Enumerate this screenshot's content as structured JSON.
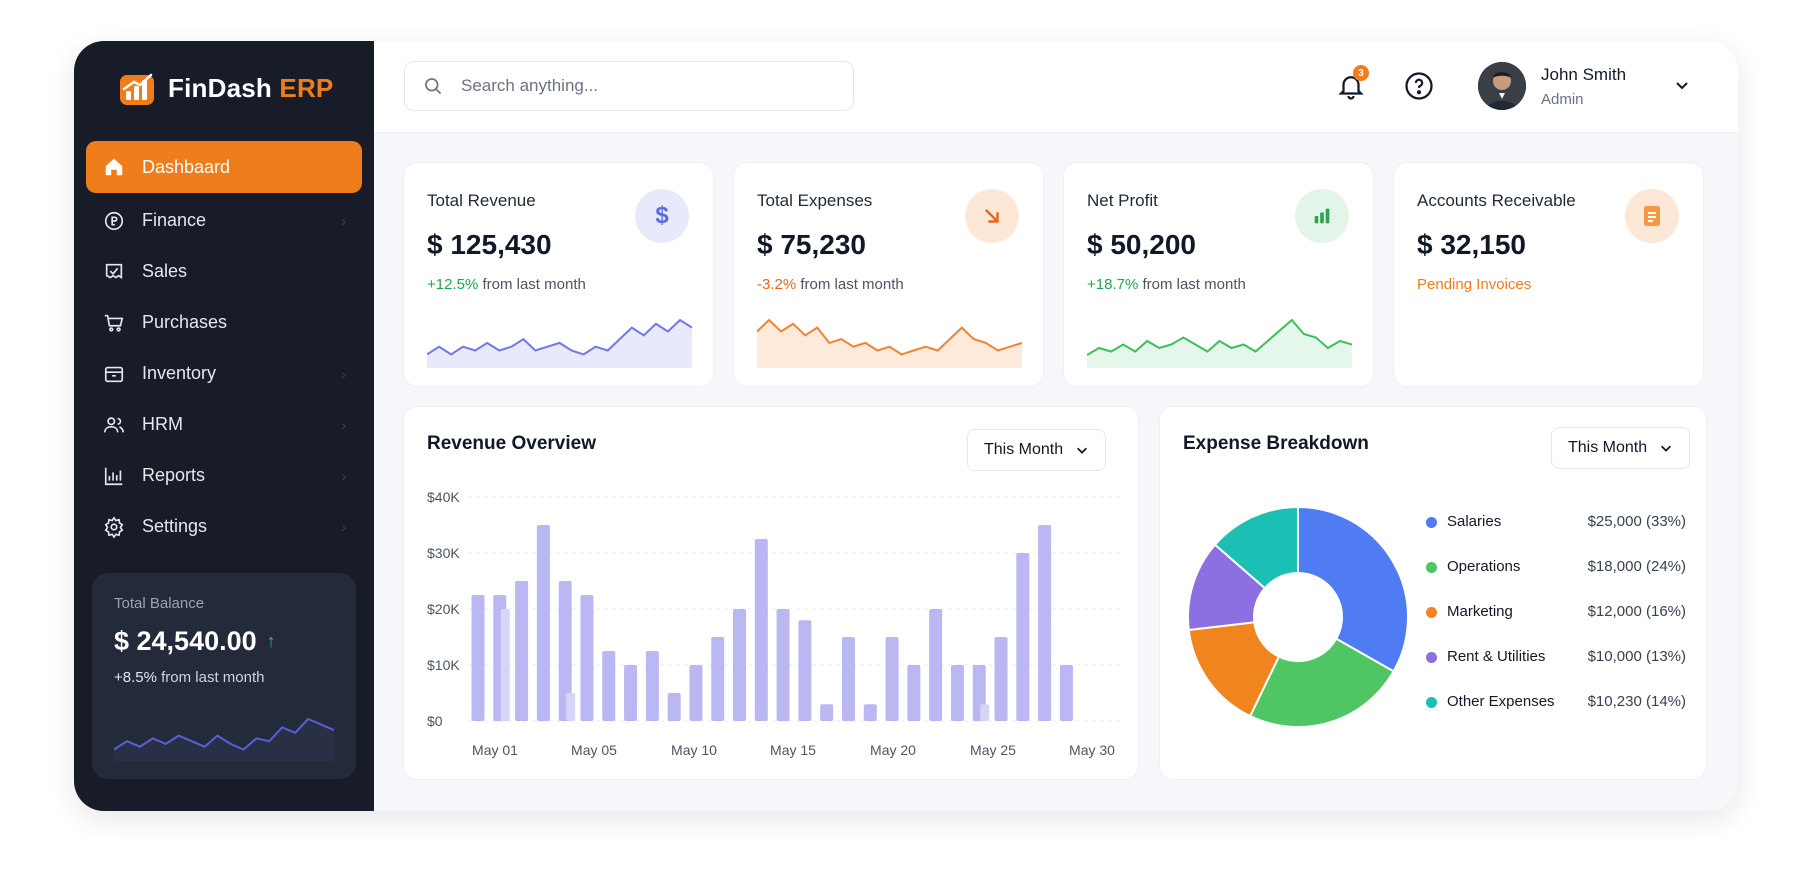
{
  "brand": {
    "name": "FinDash",
    "suffix": "ERP",
    "accent_color": "#f07d1c"
  },
  "sidebar": {
    "items": [
      {
        "label": "Dashbaard",
        "icon": "home-icon",
        "active": true,
        "has_chevron": false
      },
      {
        "label": "Finance",
        "icon": "finance-icon",
        "active": false,
        "has_chevron": true
      },
      {
        "label": "Sales",
        "icon": "sales-icon",
        "active": false,
        "has_chevron": false
      },
      {
        "label": "Purchases",
        "icon": "cart-icon",
        "active": false,
        "has_chevron": false
      },
      {
        "label": "Inventory",
        "icon": "box-icon",
        "active": false,
        "has_chevron": true
      },
      {
        "label": "HRM",
        "icon": "users-icon",
        "active": false,
        "has_chevron": true
      },
      {
        "label": "Reports",
        "icon": "reports-icon",
        "active": false,
        "has_chevron": true
      },
      {
        "label": "Settings",
        "icon": "gear-icon",
        "active": false,
        "has_chevron": true
      }
    ],
    "balance": {
      "label": "Total Balance",
      "value": "$ 24,540.00",
      "change_pct": "+8.5%",
      "change_text": "from last month",
      "spark": [
        4,
        7,
        5,
        8,
        6,
        9,
        7,
        5,
        9,
        6,
        4,
        8,
        7,
        12,
        10,
        15,
        13,
        11
      ]
    }
  },
  "header": {
    "search_placeholder": "Search anything...",
    "notifications_count": "3",
    "user": {
      "name": "John Smith",
      "role": "Admin"
    }
  },
  "stats": [
    {
      "title": "Total Revenue",
      "value": "$ 125,430",
      "change_pct": "+12.5%",
      "change_text": "from last month",
      "change_color": "#22a652",
      "icon": "dollar-icon",
      "icon_bg": "#e8e9fb",
      "icon_color": "#5c6ae6",
      "line_color": "#7477e3",
      "fill_color": "#e2e3fa",
      "spark": [
        8,
        10,
        8,
        10,
        9,
        11,
        9,
        10,
        12,
        9,
        10,
        11,
        9,
        8,
        10,
        9,
        12,
        15,
        13,
        16,
        14,
        17,
        15
      ]
    },
    {
      "title": "Total Expenses",
      "value": "$ 75,230",
      "change_pct": "-3.2%",
      "change_text": "from last month",
      "change_color": "#e8661a",
      "icon": "arrow-down-right-icon",
      "icon_bg": "#fde8d7",
      "icon_color": "#e8661a",
      "line_color": "#ef8434",
      "fill_color": "#fde5d2",
      "spark": [
        14,
        17,
        14,
        16,
        13,
        15,
        11,
        12,
        10,
        11,
        9,
        10,
        8,
        9,
        10,
        9,
        12,
        15,
        12,
        11,
        9,
        10,
        11
      ]
    },
    {
      "title": "Net Profit",
      "value": "$ 50,200",
      "change_pct": "+18.7%",
      "change_text": "from last month",
      "change_color": "#22a652",
      "icon": "bar-chart-icon",
      "icon_bg": "#e3f5e8",
      "icon_color": "#2ea44f",
      "line_color": "#3cbf5c",
      "fill_color": "#dff4e5",
      "spark": [
        7,
        9,
        8,
        10,
        8,
        11,
        9,
        10,
        12,
        10,
        8,
        11,
        9,
        10,
        8,
        11,
        14,
        17,
        13,
        12,
        9,
        11,
        10
      ]
    },
    {
      "title": "Accounts Receivable",
      "value": "$ 32,150",
      "change_pct": "",
      "change_text": "Pending Invoices",
      "change_color": "#f07d1c",
      "icon": "invoice-icon",
      "icon_bg": "#fde8d7",
      "icon_color": "#f07d1c",
      "line_color": "",
      "fill_color": "",
      "spark": []
    }
  ],
  "revenue_overview": {
    "title": "Revenue Overview",
    "filter": "This Month",
    "chart_data": {
      "type": "bar",
      "title": "Revenue Overview",
      "y_ticks": [
        "$40K",
        "$30K",
        "$20K",
        "$10K",
        "$0"
      ],
      "x_ticks": [
        "May 01",
        "May 05",
        "May 10",
        "May 15",
        "May 20",
        "May 25",
        "May 30"
      ],
      "ylim": [
        0,
        40000
      ],
      "grid": true,
      "categories": [
        "1",
        "2",
        "3",
        "4",
        "5",
        "6",
        "7",
        "8",
        "9",
        "10",
        "11",
        "12",
        "13",
        "14",
        "15",
        "16",
        "17",
        "18",
        "19",
        "20",
        "21",
        "22",
        "23",
        "24",
        "25",
        "26",
        "27",
        "28",
        "29",
        "30"
      ],
      "values": [
        22500,
        22500,
        25000,
        35000,
        25000,
        22500,
        12500,
        10000,
        12500,
        5000,
        10000,
        15000,
        20000,
        32500,
        20000,
        18000,
        3000,
        15000,
        3000,
        15000,
        10000,
        20000,
        10000,
        10000,
        15000,
        30000,
        35000,
        10000,
        0,
        0
      ],
      "secondary_values": [
        0,
        20000,
        0,
        0,
        5000,
        0,
        0,
        0,
        0,
        0,
        0,
        0,
        0,
        0,
        0,
        0,
        0,
        0,
        0,
        0,
        0,
        0,
        0,
        3000,
        0,
        0,
        0,
        0,
        0,
        0
      ],
      "bar_color": "#aeaaf0",
      "bar_color_light": "#d6d5f7"
    }
  },
  "expense_breakdown": {
    "title": "Expense Breakdown",
    "filter": "This Month",
    "chart_data": {
      "type": "pie",
      "title": "Expense Breakdown",
      "categories": [
        "Salaries",
        "Operations",
        "Marketing",
        "Rent & Utilities",
        "Other Expenses"
      ],
      "values": [
        25000,
        18000,
        12000,
        10000,
        10230
      ],
      "labels": [
        "$25,000 (33%)",
        "$18,000 (24%)",
        "$12,000 (16%)",
        "$10,000 (13%)",
        "$10,230 (14%)"
      ],
      "colors": [
        "#4f7cf3",
        "#4fc564",
        "#f08520",
        "#8c6fe0",
        "#1bbfb4"
      ]
    }
  }
}
